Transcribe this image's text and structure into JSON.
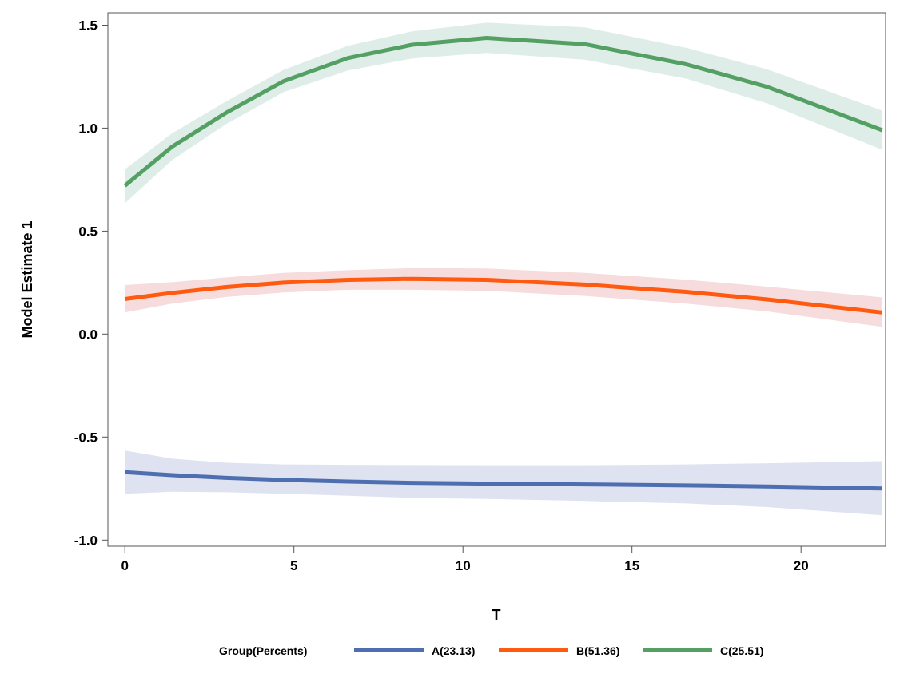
{
  "chart_data": {
    "type": "line",
    "title": "",
    "xlabel": "T",
    "ylabel": "Model Estimate 1",
    "xlim": [
      -0.5,
      22.5
    ],
    "ylim": [
      -1.03,
      1.56
    ],
    "xticks": [
      0,
      5,
      10,
      15,
      20
    ],
    "xtick_labels": [
      "0",
      "5",
      "10",
      "15",
      "20"
    ],
    "yticks": [
      -1.0,
      -0.5,
      0.0,
      0.5,
      1.0,
      1.5
    ],
    "ytick_labels": [
      "-1.0",
      "-0.5",
      "0.0",
      "0.5",
      "1.0",
      "1.5"
    ],
    "grid": false,
    "legend": {
      "title": "Group(Percents)",
      "position": "bottom"
    },
    "series": [
      {
        "name": "A(23.13)",
        "color": "#4d6faf",
        "band_color": "#dfe2f0",
        "x": [
          0,
          1.4,
          3,
          4.7,
          6.6,
          8.5,
          10.7,
          13.6,
          16.6,
          19,
          22.4
        ],
        "y": [
          -0.67,
          -0.685,
          -0.698,
          -0.708,
          -0.716,
          -0.722,
          -0.726,
          -0.73,
          -0.735,
          -0.74,
          -0.75
        ],
        "lower": [
          -0.775,
          -0.765,
          -0.768,
          -0.775,
          -0.785,
          -0.795,
          -0.8,
          -0.81,
          -0.822,
          -0.84,
          -0.88
        ],
        "upper": [
          -0.565,
          -0.605,
          -0.625,
          -0.633,
          -0.635,
          -0.636,
          -0.637,
          -0.637,
          -0.633,
          -0.627,
          -0.617
        ]
      },
      {
        "name": "B(51.36)",
        "color": "#ff5a0f",
        "band_color": "#f6dcdc",
        "x": [
          0,
          1.4,
          3,
          4.7,
          6.6,
          8.5,
          10.7,
          13.6,
          16.6,
          19,
          22.4
        ],
        "y": [
          0.17,
          0.2,
          0.228,
          0.25,
          0.263,
          0.268,
          0.263,
          0.24,
          0.205,
          0.168,
          0.105
        ],
        "lower": [
          0.105,
          0.148,
          0.18,
          0.202,
          0.215,
          0.215,
          0.21,
          0.185,
          0.148,
          0.11,
          0.035
        ],
        "upper": [
          0.238,
          0.252,
          0.275,
          0.297,
          0.31,
          0.32,
          0.318,
          0.297,
          0.264,
          0.23,
          0.178
        ]
      },
      {
        "name": "C(25.51)",
        "color": "#54a063",
        "band_color": "#dfede9",
        "x": [
          0,
          1.4,
          3,
          4.7,
          6.6,
          8.5,
          10.7,
          13.6,
          16.6,
          19,
          22.4
        ],
        "y": [
          0.72,
          0.91,
          1.075,
          1.228,
          1.34,
          1.405,
          1.438,
          1.408,
          1.31,
          1.2,
          0.99
        ],
        "lower": [
          0.635,
          0.845,
          1.02,
          1.175,
          1.28,
          1.338,
          1.365,
          1.332,
          1.24,
          1.12,
          0.895
        ],
        "upper": [
          0.8,
          0.975,
          1.13,
          1.283,
          1.4,
          1.47,
          1.512,
          1.49,
          1.39,
          1.285,
          1.085
        ]
      }
    ]
  }
}
